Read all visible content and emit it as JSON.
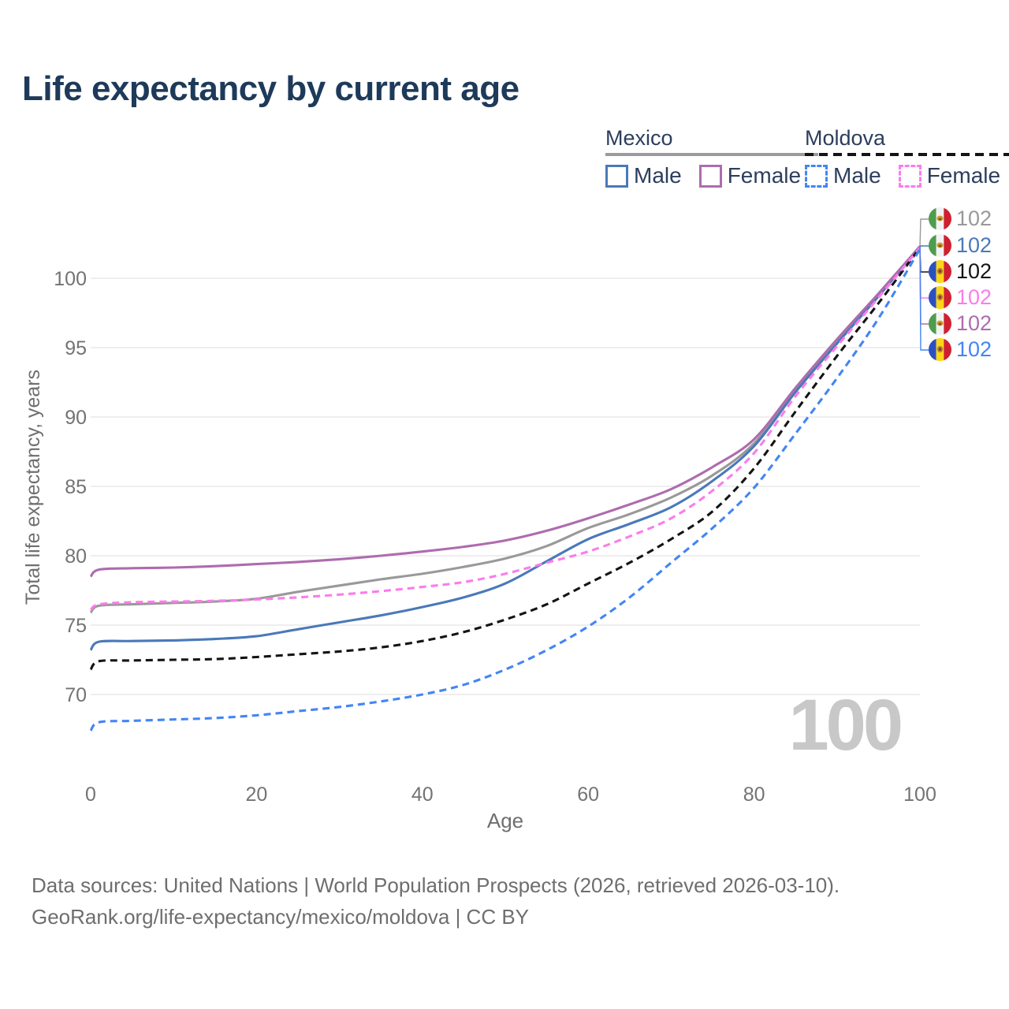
{
  "title": "Life expectancy by current age",
  "age_indicator": "100",
  "legend": {
    "groups": [
      {
        "name": "Mexico",
        "line_style": "solid",
        "rule_color": "#9b9b9b",
        "items": [
          {
            "label": "Male",
            "color": "#4a79b9",
            "dashed": false
          },
          {
            "label": "Female",
            "color": "#ae6cae",
            "dashed": false
          }
        ]
      },
      {
        "name": "Moldova",
        "line_style": "dashed",
        "rule_color": "#141414",
        "items": [
          {
            "label": "Male",
            "color": "#4385f4",
            "dashed": true
          },
          {
            "label": "Female",
            "color": "#fb7ceb",
            "dashed": true
          }
        ]
      }
    ]
  },
  "chart_data": {
    "type": "line",
    "title": "Life expectancy by current age",
    "xlabel": "Age",
    "ylabel": "Total life expectancy, years",
    "xlim": [
      0,
      100
    ],
    "ylim": [
      66,
      103
    ],
    "x_ticks": [
      0,
      20,
      40,
      60,
      80,
      100
    ],
    "y_ticks": [
      70,
      75,
      80,
      85,
      90,
      95,
      100
    ],
    "grid": "horizontal",
    "legend_position": "top-right",
    "x": [
      0,
      1,
      5,
      10,
      15,
      20,
      25,
      30,
      35,
      40,
      45,
      50,
      55,
      60,
      65,
      70,
      75,
      80,
      85,
      90,
      95,
      100
    ],
    "series": [
      {
        "name": "Mexico Both sexes",
        "country": "Mexico",
        "sex": "Both",
        "color": "#999999",
        "dashed": false,
        "values": [
          75.9,
          76.4,
          76.5,
          76.6,
          76.7,
          76.9,
          77.4,
          77.85,
          78.3,
          78.7,
          79.2,
          79.8,
          80.7,
          82.0,
          83.0,
          84.2,
          85.8,
          88.1,
          91.9,
          95.4,
          98.8,
          102.3
        ]
      },
      {
        "name": "Mexico Male",
        "country": "Mexico",
        "sex": "Male",
        "color": "#4a79b9",
        "dashed": false,
        "values": [
          73.2,
          73.8,
          73.85,
          73.9,
          74.0,
          74.2,
          74.7,
          75.2,
          75.7,
          76.3,
          77.0,
          78.0,
          79.6,
          81.2,
          82.3,
          83.5,
          85.4,
          87.9,
          91.8,
          95.3,
          98.7,
          102.3
        ]
      },
      {
        "name": "Mexico Female",
        "country": "Mexico",
        "sex": "Female",
        "color": "#ae6cae",
        "dashed": false,
        "values": [
          78.5,
          79.0,
          79.1,
          79.15,
          79.25,
          79.4,
          79.55,
          79.75,
          80.0,
          80.3,
          80.65,
          81.1,
          81.8,
          82.7,
          83.7,
          84.8,
          86.4,
          88.4,
          92.1,
          95.6,
          98.9,
          102.3
        ]
      },
      {
        "name": "Moldova Both sexes",
        "country": "Moldova",
        "sex": "Both",
        "color": "#141414",
        "dashed": true,
        "values": [
          71.8,
          72.4,
          72.45,
          72.5,
          72.55,
          72.7,
          72.9,
          73.1,
          73.4,
          73.85,
          74.5,
          75.4,
          76.5,
          78.0,
          79.5,
          81.2,
          83.2,
          86.3,
          90.4,
          94.4,
          98.2,
          102.2
        ]
      },
      {
        "name": "Moldova Female",
        "country": "Moldova",
        "sex": "Female",
        "color": "#fb7ceb",
        "dashed": true,
        "values": [
          76.1,
          76.5,
          76.65,
          76.7,
          76.75,
          76.85,
          77.0,
          77.2,
          77.45,
          77.75,
          78.1,
          78.7,
          79.5,
          80.3,
          81.4,
          82.7,
          84.7,
          87.4,
          91.5,
          95.1,
          98.6,
          102.2
        ]
      },
      {
        "name": "Moldova Male",
        "country": "Moldova",
        "sex": "Male",
        "color": "#4385f4",
        "dashed": true,
        "values": [
          67.4,
          68.0,
          68.1,
          68.2,
          68.3,
          68.5,
          68.8,
          69.1,
          69.5,
          70.0,
          70.7,
          71.8,
          73.2,
          74.9,
          77.0,
          79.5,
          82.0,
          84.9,
          88.8,
          92.8,
          97.1,
          102.1
        ]
      }
    ]
  },
  "end_labels": [
    {
      "series": "Mexico Both sexes",
      "flag": "mexico-flag-icon",
      "value": "102",
      "color": "#999999"
    },
    {
      "series": "Mexico Male",
      "flag": "mexico-flag-icon",
      "value": "102",
      "color": "#4a79b9"
    },
    {
      "series": "Moldova Both sexes",
      "flag": "moldova-flag-icon",
      "value": "102",
      "color": "#141414"
    },
    {
      "series": "Moldova Female",
      "flag": "moldova-flag-icon",
      "value": "102",
      "color": "#fb7ceb"
    },
    {
      "series": "Mexico Female",
      "flag": "mexico-flag-icon",
      "value": "102",
      "color": "#ae6cae"
    },
    {
      "series": "Moldova Male",
      "flag": "moldova-flag-icon",
      "value": "102",
      "color": "#4385f4"
    }
  ],
  "footer": {
    "line1": "Data sources: United Nations | World Population Prospects (2026, retrieved 2026-03-10).",
    "line2": "GeoRank.org/life-expectancy/mexico/moldova | CC BY"
  },
  "colors": {
    "title": "#1e3a5a",
    "axis_text": "#737373",
    "gridline": "#e9e9e9",
    "age_indicator": "#c8c8c8",
    "footer_text": "#6e6e6e"
  }
}
